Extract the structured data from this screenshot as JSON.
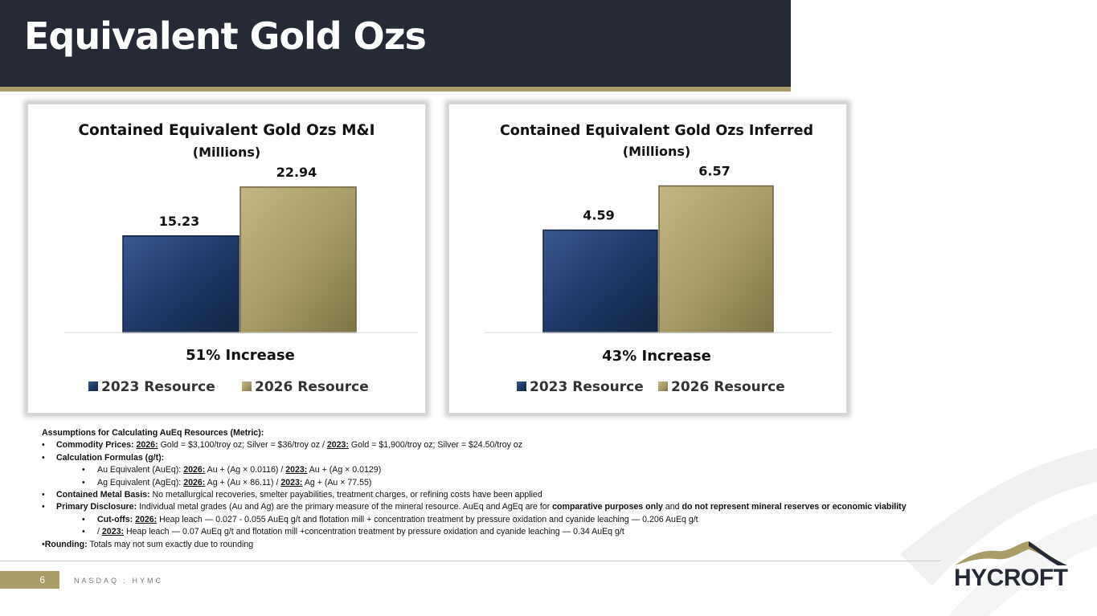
{
  "header": {
    "title": "Equivalent Gold Ozs"
  },
  "colors": {
    "navy": "#1f3a68",
    "gold": "#a99c68",
    "header_bg": "#262a36"
  },
  "chart_data": [
    {
      "type": "bar",
      "title": "Contained Equivalent Gold Ozs M&I",
      "subtitle": "(Millions)",
      "categories": [
        "2023 Resource",
        "2026 Resource"
      ],
      "values": [
        15.23,
        22.94
      ],
      "value_labels": [
        "15.23",
        "22.94"
      ],
      "ylim": [
        0,
        28.5
      ],
      "annotation": "51% Increase",
      "legend": [
        "2023 Resource",
        "2026 Resource"
      ],
      "legend_position": "bottom"
    },
    {
      "type": "bar",
      "title": "Contained Equivalent Gold Ozs Inferred",
      "subtitle": "(Millions)",
      "categories": [
        "2023 Resource",
        "2026 Resource"
      ],
      "values": [
        4.59,
        6.57
      ],
      "value_labels": [
        "4.59",
        "6.57"
      ],
      "ylim": [
        0,
        8.1
      ],
      "annotation": "43% Increase",
      "legend": [
        "2023 Resource",
        "2026 Resource"
      ],
      "legend_position": "bottom"
    }
  ],
  "notes": {
    "heading": "Assumptions for Calculating AuEq Resources (Metric):",
    "commodity_label": "Commodity Prices:",
    "y2026": "2026:",
    "y2023": "2023:",
    "commodity_2026": "Gold = $3,100/troy oz; Silver = $36/troy oz /",
    "commodity_2023": "Gold = $1,900/troy oz; Silver = $24.50/troy oz",
    "calc_label": "Calculation Formulas (g/t):",
    "au_label": "Au Equivalent (AuEq):",
    "au_2026": "Au + (Ag × 0.0116) /",
    "au_2023": "Au + (Ag × 0.0129)",
    "ag_label": "Ag Equivalent (AgEq):",
    "ag_2026": "Ag + (Au × 86.11) /",
    "ag_2023": "Ag + (Au × 77.55)",
    "cmb_label": "Contained Metal Basis:",
    "cmb_text": "No metallurgical recoveries, smelter payabilities, treatment charges, or refining costs have been applied",
    "pd_label": "Primary Disclosure:",
    "pd_text1": "Individual metal grades (Au and Ag) are the primary measure of the mineral resource. AuEq and AgEq are for",
    "pd_bold1": "comparative purposes only",
    "pd_and": "and",
    "pd_bold2": "do not represent mineral reserves or economic viability",
    "cutoff_label": "Cut-offs:",
    "cutoff_2026": "Heap leach — 0.027 - 0.055 AuEq g/t and flotation mill + concentration treatment by pressure oxidation and cyanide leaching — 0.206 AuEq g/t",
    "slash": "/",
    "cutoff_2023": "Heap leach — 0.07 AuEq g/t and flotation mill +concentration treatment by pressure oxidation and cyanide leaching — 0.34 AuEq g/t",
    "rounding_label": "•Rounding:",
    "rounding_text": "Totals may not sum exactly due to rounding"
  },
  "footer": {
    "page_number": "6",
    "ticker": "NASDAQ : HYMC"
  },
  "logo": {
    "text": "HYCROFT"
  }
}
